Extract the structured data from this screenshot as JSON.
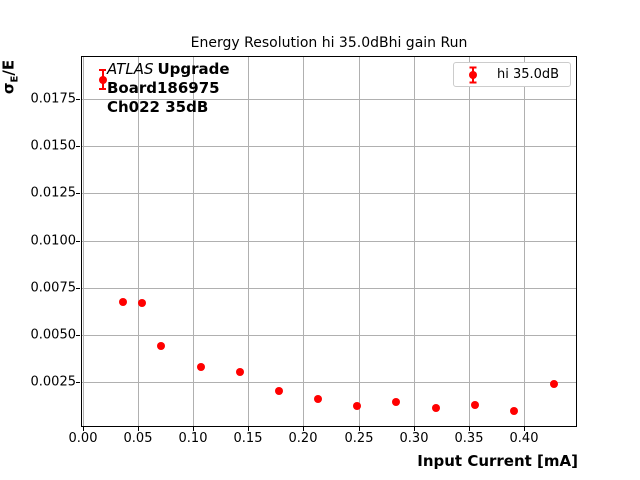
{
  "figure": {
    "background": "#ffffff"
  },
  "chart_data": {
    "type": "scatter",
    "title": "Energy Resolution hi 35.0dBhi gain Run",
    "xlabel": "Input Current [mA]",
    "ylabel": "σ_E/E",
    "grid": true,
    "legend": [
      "hi 35.0dB"
    ],
    "legend_position": "upper right",
    "xlim": [
      -0.001,
      0.4473
    ],
    "ylim": [
      0.0002,
      0.0197
    ],
    "xticks": [
      0.0,
      0.05,
      0.1,
      0.15,
      0.2,
      0.25,
      0.3,
      0.35,
      0.4
    ],
    "yticks": [
      0.0025,
      0.005,
      0.0075,
      0.01,
      0.0125,
      0.015,
      0.0175
    ],
    "series": [
      {
        "name": "hi 35.0dB",
        "color": "#ff0000",
        "marker": "circle-with-errorbar",
        "x": [
          0.018,
          0.036,
          0.053,
          0.071,
          0.107,
          0.142,
          0.178,
          0.213,
          0.249,
          0.284,
          0.32,
          0.356,
          0.391,
          0.427
        ],
        "y": [
          0.0185,
          0.00677,
          0.0067,
          0.00441,
          0.00333,
          0.00307,
          0.00206,
          0.00161,
          0.00126,
          0.00145,
          0.00114,
          0.00129,
          0.00101,
          0.00244
        ],
        "yerr": [
          0.0005,
          0,
          0,
          0,
          0,
          0,
          0,
          0,
          0,
          0,
          0,
          0,
          0,
          0
        ]
      }
    ],
    "annotation": {
      "line1_italic": "ATLAS",
      "line1_bold": "Upgrade",
      "line2": "Board186975",
      "line3": "Ch022 35dB"
    }
  },
  "labels": {
    "ylabel_sigma": "σ",
    "ylabel_sub": "E",
    "ylabel_rest": "/E"
  },
  "colors": {
    "series": "#ff0000",
    "grid": "#b0b0b0",
    "spine": "#000000",
    "legend_border": "#cccccc",
    "text": "#000000"
  }
}
